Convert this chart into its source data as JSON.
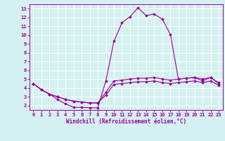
{
  "xlabel": "Windchill (Refroidissement éolien,°C)",
  "x_values": [
    0,
    1,
    2,
    3,
    4,
    5,
    6,
    7,
    8,
    9,
    10,
    11,
    12,
    13,
    14,
    15,
    16,
    17,
    18,
    19,
    20,
    21,
    22,
    23
  ],
  "line1": [
    4.5,
    3.8,
    3.3,
    2.7,
    2.2,
    1.8,
    1.8,
    1.75,
    1.75,
    4.8,
    9.3,
    11.4,
    12.1,
    13.1,
    12.2,
    12.4,
    11.8,
    10.1,
    5.0,
    5.1,
    5.2,
    4.8,
    5.2,
    4.5
  ],
  "line2": [
    4.5,
    3.8,
    3.3,
    3.0,
    2.7,
    2.5,
    2.4,
    2.3,
    2.3,
    3.5,
    4.8,
    4.9,
    5.0,
    5.1,
    5.1,
    5.2,
    5.0,
    4.9,
    5.0,
    5.1,
    5.2,
    5.0,
    5.2,
    4.6
  ],
  "line3": [
    4.5,
    3.8,
    3.3,
    3.0,
    2.7,
    2.5,
    2.4,
    2.3,
    2.3,
    3.2,
    4.4,
    4.5,
    4.6,
    4.7,
    4.7,
    4.8,
    4.6,
    4.5,
    4.6,
    4.7,
    4.8,
    4.6,
    4.8,
    4.3
  ],
  "line_color": "#990099",
  "bg_color": "#d4f0f0",
  "grid_color": "#ffffff",
  "ylim": [
    1.5,
    13.5
  ],
  "xlim": [
    -0.5,
    23.5
  ],
  "yticks": [
    2,
    3,
    4,
    5,
    6,
    7,
    8,
    9,
    10,
    11,
    12,
    13
  ],
  "xticks": [
    0,
    1,
    2,
    3,
    4,
    5,
    6,
    7,
    8,
    9,
    10,
    11,
    12,
    13,
    14,
    15,
    16,
    17,
    18,
    19,
    20,
    21,
    22,
    23
  ],
  "marker": "D",
  "markersize": 1.8,
  "linewidth": 0.8,
  "tick_fontsize": 5.0,
  "xlabel_fontsize": 5.5
}
